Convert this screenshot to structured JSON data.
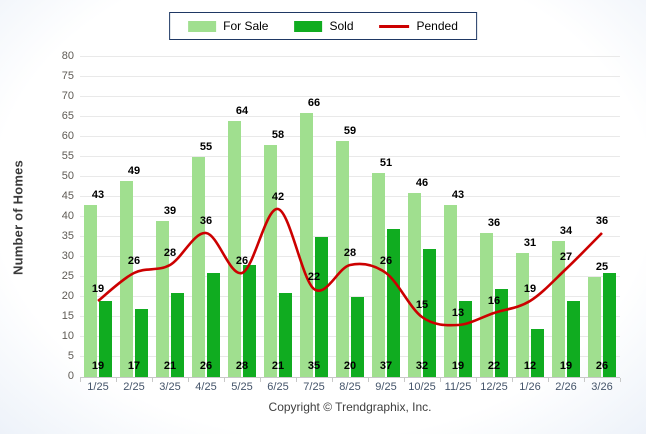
{
  "chart_data": {
    "type": "bar",
    "title": "",
    "categories": [
      "1/25",
      "2/25",
      "3/25",
      "4/25",
      "5/25",
      "6/25",
      "7/25",
      "8/25",
      "9/25",
      "10/25",
      "11/25",
      "12/25",
      "1/26",
      "2/26",
      "3/26"
    ],
    "series": [
      {
        "name": "For Sale",
        "type": "bar",
        "color": "#A0DF8F",
        "values": [
          43,
          49,
          39,
          55,
          64,
          58,
          66,
          59,
          51,
          46,
          43,
          36,
          31,
          34,
          25
        ]
      },
      {
        "name": "Sold",
        "type": "bar",
        "color": "#10AC20",
        "values": [
          19,
          17,
          21,
          26,
          28,
          21,
          35,
          20,
          37,
          32,
          19,
          22,
          12,
          19,
          26
        ]
      },
      {
        "name": "Pended",
        "type": "line",
        "color": "#CC0000",
        "values": [
          19,
          26,
          28,
          36,
          26,
          42,
          22,
          28,
          26,
          15,
          13,
          16,
          19,
          27,
          36
        ]
      }
    ],
    "xlabel": "",
    "ylabel": "Number of Homes",
    "ylim": [
      0,
      80
    ],
    "ytick_step": 5,
    "grid": "horizontal",
    "legend_position": "top-center",
    "copyright": "Copyright © Trendgraphix, Inc."
  },
  "colors": {
    "legend_border": "#1F3864",
    "gridline": "#E9E9E9",
    "axis_line": "#C8C8C8",
    "y_tick_text": "#5F5B55",
    "x_tick_text": "#44546A"
  }
}
